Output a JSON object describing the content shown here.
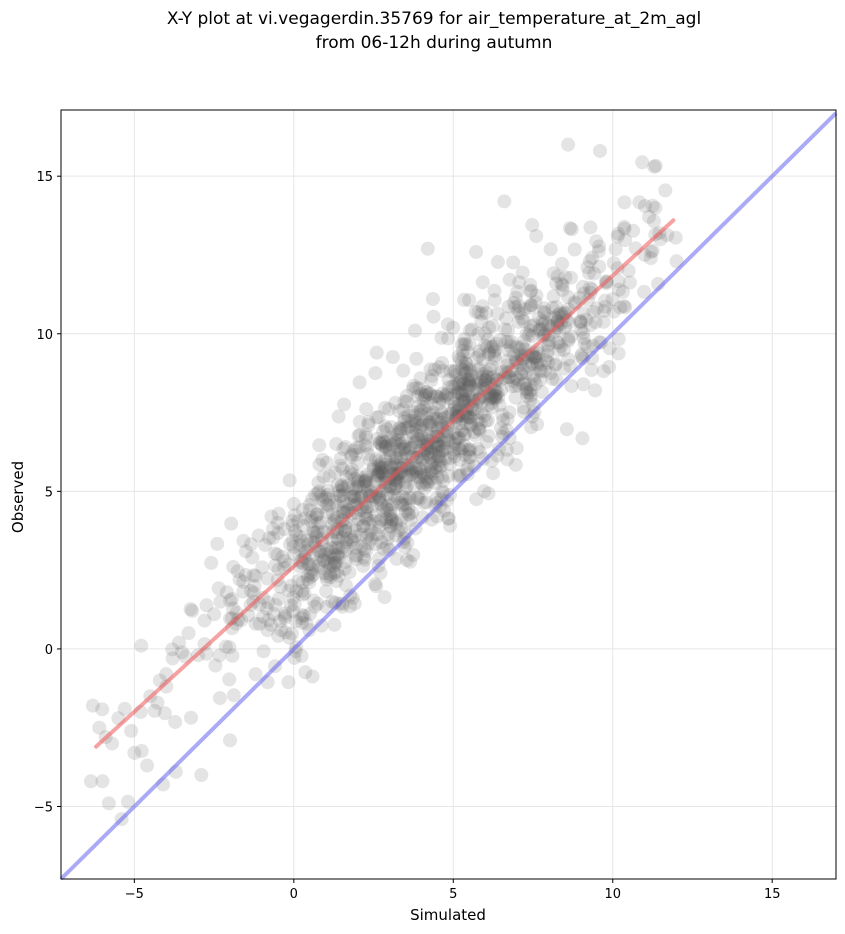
{
  "chart_data": {
    "type": "scatter",
    "title": "X-Y plot at vi.vegagerdin.35769 for air_temperature_at_2m_agl",
    "subtitle": "from 06-12h during autumn",
    "xlabel": "Simulated",
    "ylabel": "Observed",
    "xlim": [
      -7.3,
      17.0
    ],
    "ylim": [
      -7.3,
      17.1
    ],
    "xticks": [
      -5,
      0,
      5,
      10,
      15
    ],
    "yticks": [
      -5,
      0,
      5,
      10,
      15
    ],
    "xtick_labels": [
      "−5",
      "0",
      "5",
      "10",
      "15"
    ],
    "ytick_labels": [
      "−5",
      "0",
      "5",
      "10",
      "15"
    ],
    "grid": true,
    "colors": {
      "points": "#555555",
      "fit_line": "#ee5555",
      "identity_line": "#5555ee"
    },
    "fit_line": {
      "x": [
        -6.2,
        11.9
      ],
      "y": [
        -3.1,
        13.6
      ]
    },
    "identity_line": {
      "x": [
        -7.3,
        17.0
      ],
      "y": [
        -7.3,
        17.0
      ]
    },
    "n_points": 1400,
    "points": {
      "x": [
        -6.3,
        -6.1,
        -5.9,
        -5.7,
        -5.5,
        -5.3,
        -5.1,
        -5.0,
        -4.8,
        -4.5,
        -4.2,
        -4.0,
        -3.8,
        -3.6,
        -3.3,
        -3.0,
        -2.8,
        -2.5,
        -2.3,
        -2.1,
        -1.9,
        -1.7,
        -1.5,
        -1.3,
        -1.1,
        -0.9,
        -0.7,
        -0.5,
        -0.3,
        0.0,
        0.3,
        0.5,
        0.8,
        1.0,
        1.3,
        1.5,
        1.8,
        2.0,
        2.3,
        2.5,
        2.8,
        3.0,
        3.3,
        3.5,
        3.8,
        4.0,
        4.3,
        4.5,
        4.8,
        5.0,
        5.3,
        5.5,
        5.8,
        6.0,
        6.3,
        6.5,
        6.8,
        7.0,
        7.3,
        7.5,
        7.8,
        8.0,
        8.3,
        8.5,
        8.8,
        9.0,
        9.3,
        9.5,
        9.8,
        10.0,
        10.5,
        11.0,
        11.5,
        12.0,
        -6.0,
        -5.8,
        -5.4,
        -4.6,
        -4.1,
        -3.7,
        -2.9,
        -2.0,
        -1.2,
        -0.4,
        0.4,
        1.2,
        2.2,
        3.2,
        4.1,
        5.2,
        6.2,
        7.2,
        8.2,
        9.2,
        10.2,
        11.2,
        8.6,
        9.6,
        11.3,
        4.2,
        3.8,
        2.6,
        6.6,
        7.6
      ],
      "y": [
        -1.8,
        -2.5,
        -2.8,
        -3.0,
        -2.2,
        -1.9,
        -2.6,
        -3.3,
        -2.0,
        -1.5,
        -1.0,
        -0.8,
        -0.3,
        0.2,
        0.5,
        -0.2,
        0.9,
        1.1,
        1.5,
        1.8,
        2.6,
        2.2,
        3.1,
        2.9,
        3.6,
        3.3,
        4.2,
        4.0,
        3.8,
        4.6,
        3.9,
        4.4,
        5.0,
        4.8,
        5.6,
        5.2,
        6.1,
        5.9,
        6.4,
        5.7,
        6.9,
        6.3,
        7.0,
        6.6,
        7.4,
        7.1,
        7.8,
        7.3,
        8.1,
        7.6,
        8.4,
        8.0,
        8.9,
        8.5,
        9.3,
        8.8,
        9.6,
        9.1,
        10.0,
        9.4,
        10.3,
        9.8,
        10.6,
        10.2,
        11.0,
        10.4,
        11.3,
        10.8,
        11.6,
        11.1,
        12.0,
        12.5,
        13.0,
        12.3,
        -4.2,
        -4.9,
        -5.4,
        -3.7,
        -4.3,
        -3.9,
        -4.0,
        -2.9,
        -0.8,
        0.6,
        0.8,
        1.5,
        2.9,
        3.6,
        5.1,
        6.0,
        7.8,
        8.4,
        9.0,
        9.6,
        11.4,
        12.6,
        16.0,
        15.8,
        15.3,
        12.7,
        10.1,
        9.4,
        14.2,
        13.1
      ]
    }
  }
}
